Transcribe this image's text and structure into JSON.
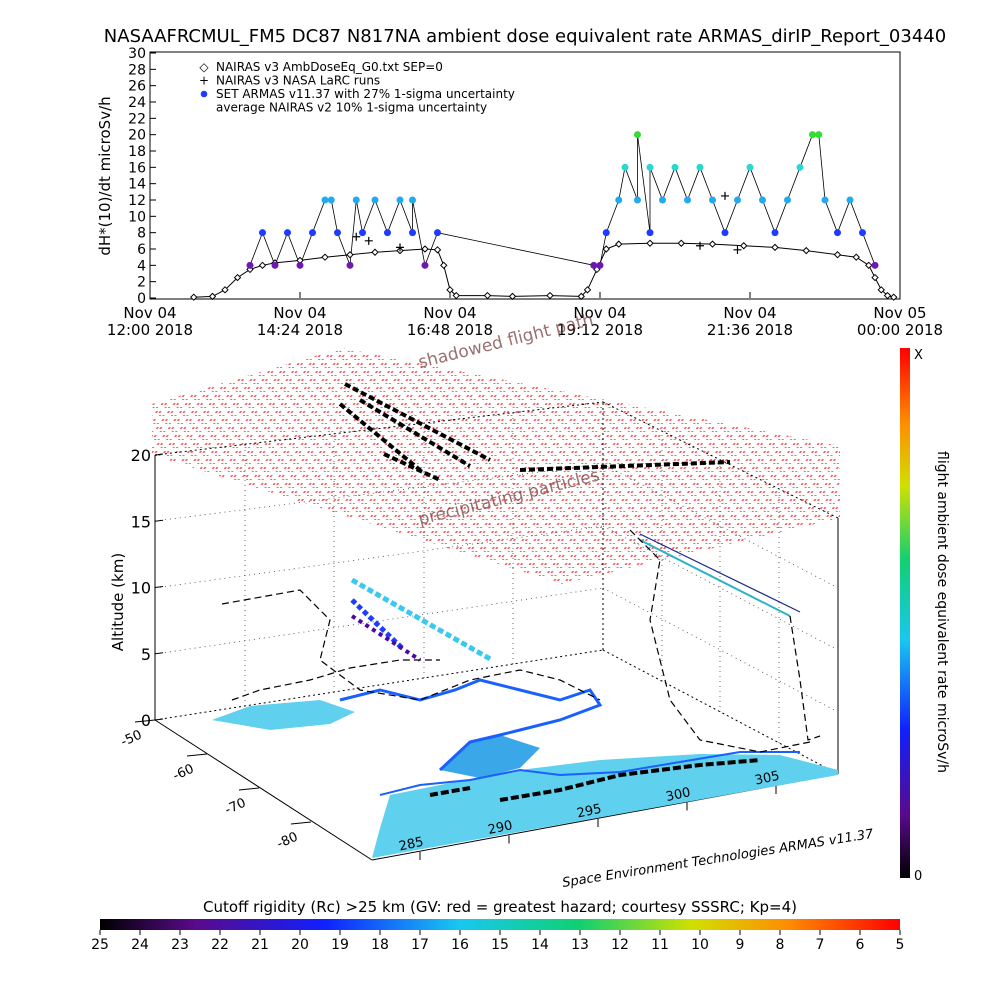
{
  "title": "NASAAFRCMUL_FM5 DC87 N817NA ambient dose equivalent rate ARMAS_dirIP_Report_03440",
  "chart_data": [
    {
      "type": "scatter",
      "ylabel": "dH*(10)/dt microSv/h",
      "ylim": [
        0,
        30
      ],
      "y_ticks": [
        0,
        2,
        4,
        6,
        8,
        10,
        12,
        14,
        16,
        18,
        20,
        22,
        24,
        26,
        28,
        30
      ],
      "x_ticks": [
        {
          "day": "Nov 04",
          "time": "12:00 2018",
          "h": 12.0
        },
        {
          "day": "Nov 04",
          "time": "14:24 2018",
          "h": 14.4
        },
        {
          "day": "Nov 04",
          "time": "16:48 2018",
          "h": 16.8
        },
        {
          "day": "Nov 04",
          "time": "19:12 2018",
          "h": 19.2
        },
        {
          "day": "Nov 04",
          "time": "21:36 2018",
          "h": 21.6
        },
        {
          "day": "Nov 05",
          "time": "00:00 2018",
          "h": 24.0
        }
      ],
      "xlim": [
        12.0,
        24.0
      ],
      "legend": [
        {
          "symbol": "◇",
          "text": "NAIRAS v3 AmbDoseEq_G0.txt SEP=0"
        },
        {
          "symbol": "+",
          "text": "NAIRAS v3 NASA LaRC runs"
        },
        {
          "symbol": "●",
          "text": "SET ARMAS v11.37 with 27% 1-sigma uncertainty"
        },
        {
          "symbol": "",
          "text": "average NAIRAS v2 10% 1-sigma uncertainty"
        }
      ],
      "series": [
        {
          "name": "NAIRAS v3 AmbDoseEq_G0.txt SEP=0",
          "points": [
            [
              12.7,
              0.1
            ],
            [
              13.0,
              0.2
            ],
            [
              13.2,
              1.0
            ],
            [
              13.4,
              2.5
            ],
            [
              13.6,
              3.5
            ],
            [
              13.8,
              4.0
            ],
            [
              14.0,
              4.3
            ],
            [
              14.4,
              4.6
            ],
            [
              14.8,
              5.0
            ],
            [
              15.2,
              5.3
            ],
            [
              15.6,
              5.6
            ],
            [
              16.0,
              5.8
            ],
            [
              16.4,
              6.0
            ],
            [
              16.6,
              5.9
            ],
            [
              16.7,
              4.0
            ],
            [
              16.8,
              1.0
            ],
            [
              16.9,
              0.3
            ],
            [
              17.4,
              0.3
            ],
            [
              17.8,
              0.2
            ],
            [
              18.4,
              0.3
            ],
            [
              18.9,
              0.2
            ],
            [
              19.0,
              1.0
            ],
            [
              19.15,
              3.5
            ],
            [
              19.3,
              6.0
            ],
            [
              19.5,
              6.6
            ],
            [
              20.0,
              6.7
            ],
            [
              20.5,
              6.7
            ],
            [
              21.0,
              6.6
            ],
            [
              21.5,
              6.4
            ],
            [
              22.0,
              6.2
            ],
            [
              22.5,
              5.8
            ],
            [
              23.0,
              5.3
            ],
            [
              23.3,
              5.0
            ],
            [
              23.5,
              4.0
            ],
            [
              23.6,
              2.5
            ],
            [
              23.7,
              1.0
            ],
            [
              23.8,
              0.3
            ],
            [
              23.9,
              0.1
            ]
          ]
        },
        {
          "name": "NAIRAS v3 NASA LaRC runs",
          "points": [
            [
              15.3,
              7.5
            ],
            [
              15.5,
              7.0
            ],
            [
              16.0,
              6.2
            ],
            [
              21.2,
              12.5
            ],
            [
              20.8,
              6.4
            ],
            [
              21.4,
              5.9
            ]
          ]
        },
        {
          "name": "SET ARMAS v11.37 with 27% 1-sigma uncertainty",
          "points": [
            [
              13.6,
              4
            ],
            [
              13.8,
              8
            ],
            [
              14.0,
              4
            ],
            [
              14.2,
              8
            ],
            [
              14.4,
              4
            ],
            [
              14.6,
              8
            ],
            [
              14.8,
              12
            ],
            [
              15.0,
              8
            ],
            [
              15.2,
              4
            ],
            [
              15.4,
              8
            ],
            [
              15.6,
              12
            ],
            [
              15.8,
              8
            ],
            [
              16.0,
              12
            ],
            [
              16.2,
              8
            ],
            [
              16.4,
              4
            ],
            [
              16.6,
              8
            ],
            [
              16.2,
              12
            ],
            [
              15.3,
              12
            ],
            [
              14.9,
              12
            ],
            [
              19.3,
              8
            ],
            [
              19.5,
              12
            ],
            [
              19.6,
              16
            ],
            [
              19.8,
              12
            ],
            [
              20.0,
              8
            ],
            [
              20.2,
              12
            ],
            [
              20.4,
              16
            ],
            [
              20.6,
              12
            ],
            [
              20.8,
              16
            ],
            [
              21.0,
              12
            ],
            [
              21.2,
              8
            ],
            [
              21.4,
              12
            ],
            [
              21.6,
              16
            ],
            [
              21.8,
              12
            ],
            [
              22.0,
              8
            ],
            [
              22.2,
              12
            ],
            [
              22.4,
              16
            ],
            [
              22.6,
              20
            ],
            [
              22.8,
              12
            ],
            [
              23.0,
              8
            ],
            [
              23.2,
              12
            ],
            [
              23.4,
              8
            ],
            [
              23.6,
              4
            ],
            [
              19.8,
              20
            ],
            [
              20.0,
              16
            ],
            [
              22.7,
              20
            ],
            [
              19.1,
              4
            ],
            [
              19.2,
              4
            ]
          ]
        }
      ]
    },
    {
      "type": "3d-map",
      "zlabel": "Altitude (km)",
      "z_ticks": [
        0,
        5,
        10,
        15,
        20
      ],
      "lat_ticks": [
        -50,
        -60,
        -70,
        -80
      ],
      "lon_ticks": [
        285,
        290,
        295,
        300,
        305
      ],
      "annotations": {
        "shadowed": "shadowed flight path",
        "precip": "precipitating particles"
      },
      "colorbar": {
        "label": "flight ambient dose equivalent rate microSv/h",
        "top": "X",
        "bottom": "0"
      }
    },
    {
      "type": "colorbar",
      "label": "Cutoff rigidity (Rc) >25 km (GV: red = greatest hazard; courtesy SSSRC; Kp=4)",
      "ticks": [
        "25",
        "24",
        "23",
        "22",
        "21",
        "20",
        "19",
        "18",
        "17",
        "16",
        "15",
        "14",
        "13",
        "12",
        "11",
        "10",
        "9",
        "8",
        "7",
        "6",
        "5"
      ]
    }
  ],
  "credit": "Space Environment Technologies ARMAS v11.37",
  "colors": {
    "armas_points": "#1e3cff",
    "high_points_cyan": "#27d7d0",
    "top_point_green": "#33dd33",
    "low_points_purple": "#6a1ab0",
    "mesh": "#ff0000",
    "ocean": "#5fd0ee",
    "land": "#ffffff"
  }
}
